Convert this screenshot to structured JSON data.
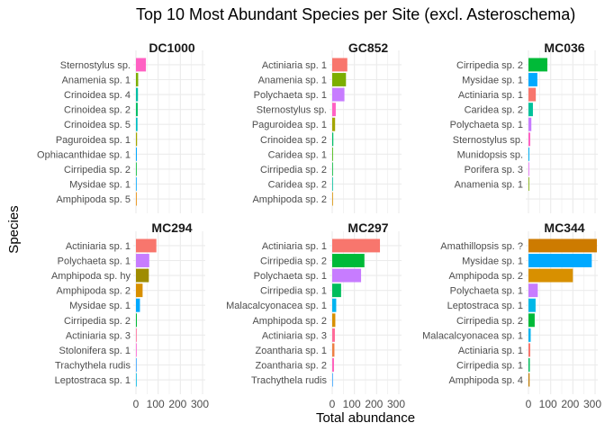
{
  "chart_data": {
    "type": "bar",
    "orientation": "horizontal",
    "title": "Top 10 Most Abundant Species per Site (excl. Asteroschema)",
    "xlabel": "Total abundance",
    "ylabel": "Species",
    "xlim": [
      0,
      300
    ],
    "x_ticks": [
      "0",
      "100",
      "200",
      "300"
    ],
    "grid": true,
    "legend": "none",
    "colors": {
      "Sternostylus sp.": "#ff61c3",
      "Anamenia sp. 1": "#7cae00",
      "Crinoidea sp. 4": "#00bfa4",
      "Crinoidea sp. 2": "#00be67",
      "Crinoidea sp. 5": "#00bfc4",
      "Paguroidea sp. 1": "#a3a500",
      "Ophiacanthidae sp. 1": "#00a9ff",
      "Cirripedia sp. 2": "#00ba38",
      "Mysidae sp. 1": "#00a9ff",
      "Amphipoda sp. 5": "#e58700",
      "Actiniaria sp. 1": "#f8766d",
      "Polychaeta sp. 1": "#c77cff",
      "Caridea sp. 1": "#39b600",
      "Caridea sp. 2": "#00c19a",
      "Amphipoda sp. 2": "#d89000",
      "Munidopsis sp.": "#00b0f6",
      "Porifera sp. 3": "#e76bf3",
      "Amphipoda sp. hy": "#9f8c00",
      "Actiniaria sp. 3": "#ff6a98",
      "Stolonifera sp. 1": "#fd61d1",
      "Trachythela rudis": "#35a2ff",
      "Leptostraca sp. 1": "#00b8e7",
      "Malacalcyonacea sp. 1": "#00b4f0",
      "Zoantharia sp. 1": "#ee8044",
      "Zoantharia sp. 2": "#ff62bc",
      "Amathillopsis sp. ?": "#cd7b00",
      "Cirripedia sp. 1": "#00bd5c",
      "Amphipoda sp. 4": "#bf7a00"
    },
    "panels": [
      {
        "site": "DC1000",
        "categories": [
          "Sternostylus sp.",
          "Anamenia sp. 1",
          "Crinoidea sp. 4",
          "Crinoidea sp. 2",
          "Crinoidea sp. 5",
          "Paguroidea sp. 1",
          "Ophiacanthidae sp. 1",
          "Cirripedia sp. 2",
          "Mysidae sp. 1",
          "Amphipoda sp. 5"
        ],
        "values": [
          45,
          10,
          9,
          8,
          7,
          5,
          4,
          3,
          3,
          2
        ]
      },
      {
        "site": "GC852",
        "categories": [
          "Actiniaria sp. 1",
          "Anamenia sp. 1",
          "Polychaeta sp. 1",
          "Sternostylus sp.",
          "Paguroidea sp. 1",
          "Crinoidea sp. 2",
          "Caridea sp. 1",
          "Cirripedia sp. 2",
          "Caridea sp. 2",
          "Amphipoda sp. 2"
        ],
        "values": [
          68,
          62,
          55,
          16,
          13,
          5,
          3,
          3,
          2,
          2
        ]
      },
      {
        "site": "MC036",
        "categories": [
          "Cirripedia sp. 2",
          "Mysidae sp. 1",
          "Actiniaria sp. 1",
          "Caridea sp. 2",
          "Polychaeta sp. 1",
          "Sternostylus sp.",
          "Munidopsis sp.",
          "Porifera sp. 3",
          "Anamenia sp. 1"
        ],
        "values": [
          85,
          40,
          33,
          20,
          13,
          8,
          4,
          2,
          1
        ]
      },
      {
        "site": "MC294",
        "categories": [
          "Actiniaria sp. 1",
          "Polychaeta sp. 1",
          "Amphipoda sp. hy",
          "Amphipoda sp. 2",
          "Mysidae sp. 1",
          "Cirripedia sp. 2",
          "Actiniaria sp. 3",
          "Stolonifera sp. 1",
          "Trachythela rudis",
          "Leptostraca sp. 1"
        ],
        "values": [
          92,
          60,
          58,
          30,
          18,
          4,
          3,
          3,
          2,
          2
        ]
      },
      {
        "site": "MC297",
        "categories": [
          "Actiniaria sp. 1",
          "Cirripedia sp. 2",
          "Polychaeta sp. 1",
          "Cirripedia sp. 1",
          "Malacalcyonacea sp. 1",
          "Amphipoda sp. 2",
          "Actiniaria sp. 3",
          "Zoantharia sp. 1",
          "Zoantharia sp. 2",
          "Trachythela rudis"
        ],
        "values": [
          215,
          145,
          130,
          40,
          18,
          14,
          12,
          10,
          8,
          3
        ]
      },
      {
        "site": "MC344",
        "categories": [
          "Amathillopsis sp. ?",
          "Mysidae sp. 1",
          "Amphipoda sp. 2",
          "Polychaeta sp. 1",
          "Leptostraca sp. 1",
          "Cirripedia sp. 2",
          "Malacalcyonacea sp. 1",
          "Actiniaria sp. 1",
          "Cirripedia sp. 1",
          "Amphipoda sp. 4"
        ],
        "values": [
          308,
          285,
          200,
          42,
          32,
          28,
          10,
          8,
          6,
          5
        ]
      }
    ]
  }
}
